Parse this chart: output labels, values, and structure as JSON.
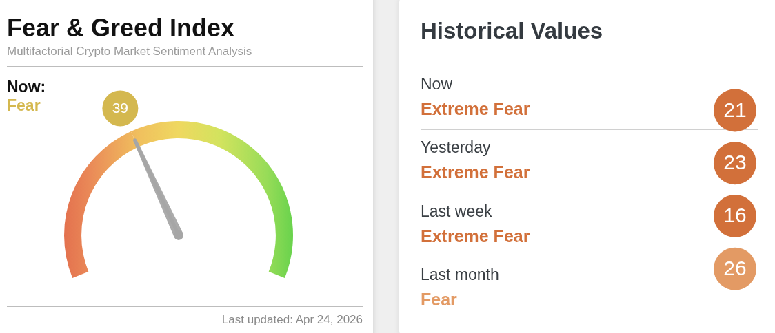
{
  "chart_data": [
    {
      "type": "donut",
      "title": "Fear & Greed Index",
      "subtitle": "Multifactorial Crypto Market Sentiment Analysis",
      "categories": [
        null,
        null
      ],
      "values": [
        39,
        61
      ],
      "value_labels": [
        "39",
        null
      ],
      "needle": null,
      "color": "#d4b84f",
      "annotations": [
        "Now:",
        "Fear",
        "Last updated: Apr 24, 2026"
      ]
    },
    {
      "type": "other",
      "title": "Historical Values",
      "categories": [
        "Now",
        "Yesterday",
        "Last week",
        "Last month"
      ],
      "values": [
        21,
        23,
        16,
        26
      ],
      "colors": [
        "#d2703a",
        "#d2703a",
        "#d2703a",
        "#e39a64"
      ],
      "data_labels": true,
      "annotations": [
        "Extreme Fear",
        "Extreme Fear",
        "Extreme Fear",
        "Fear"
      ]
    }
  ]
}
